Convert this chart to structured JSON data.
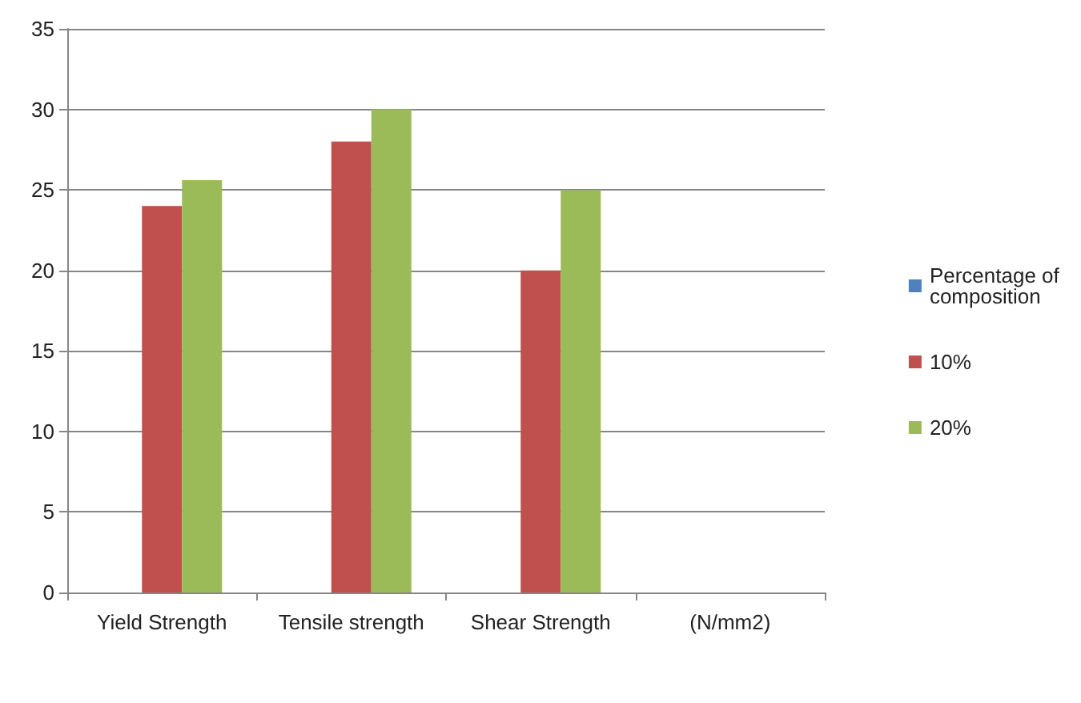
{
  "chart_data": {
    "type": "bar",
    "categories": [
      "Yield Strength",
      "Tensile strength",
      "Shear Strength",
      "(N/mm2)"
    ],
    "series": [
      {
        "name": "Percentage of composition",
        "color": "#4f81bd",
        "values": [
          null,
          null,
          null,
          null
        ]
      },
      {
        "name": "10%",
        "color": "#c0504d",
        "values": [
          24,
          28,
          20,
          null
        ]
      },
      {
        "name": "20%",
        "color": "#9bbb59",
        "values": [
          25.6,
          30,
          25,
          null
        ]
      }
    ],
    "ylim": [
      0,
      35
    ],
    "yticks": [
      0,
      5,
      10,
      15,
      20,
      25,
      30,
      35
    ],
    "grid": "y",
    "legend": "right"
  }
}
